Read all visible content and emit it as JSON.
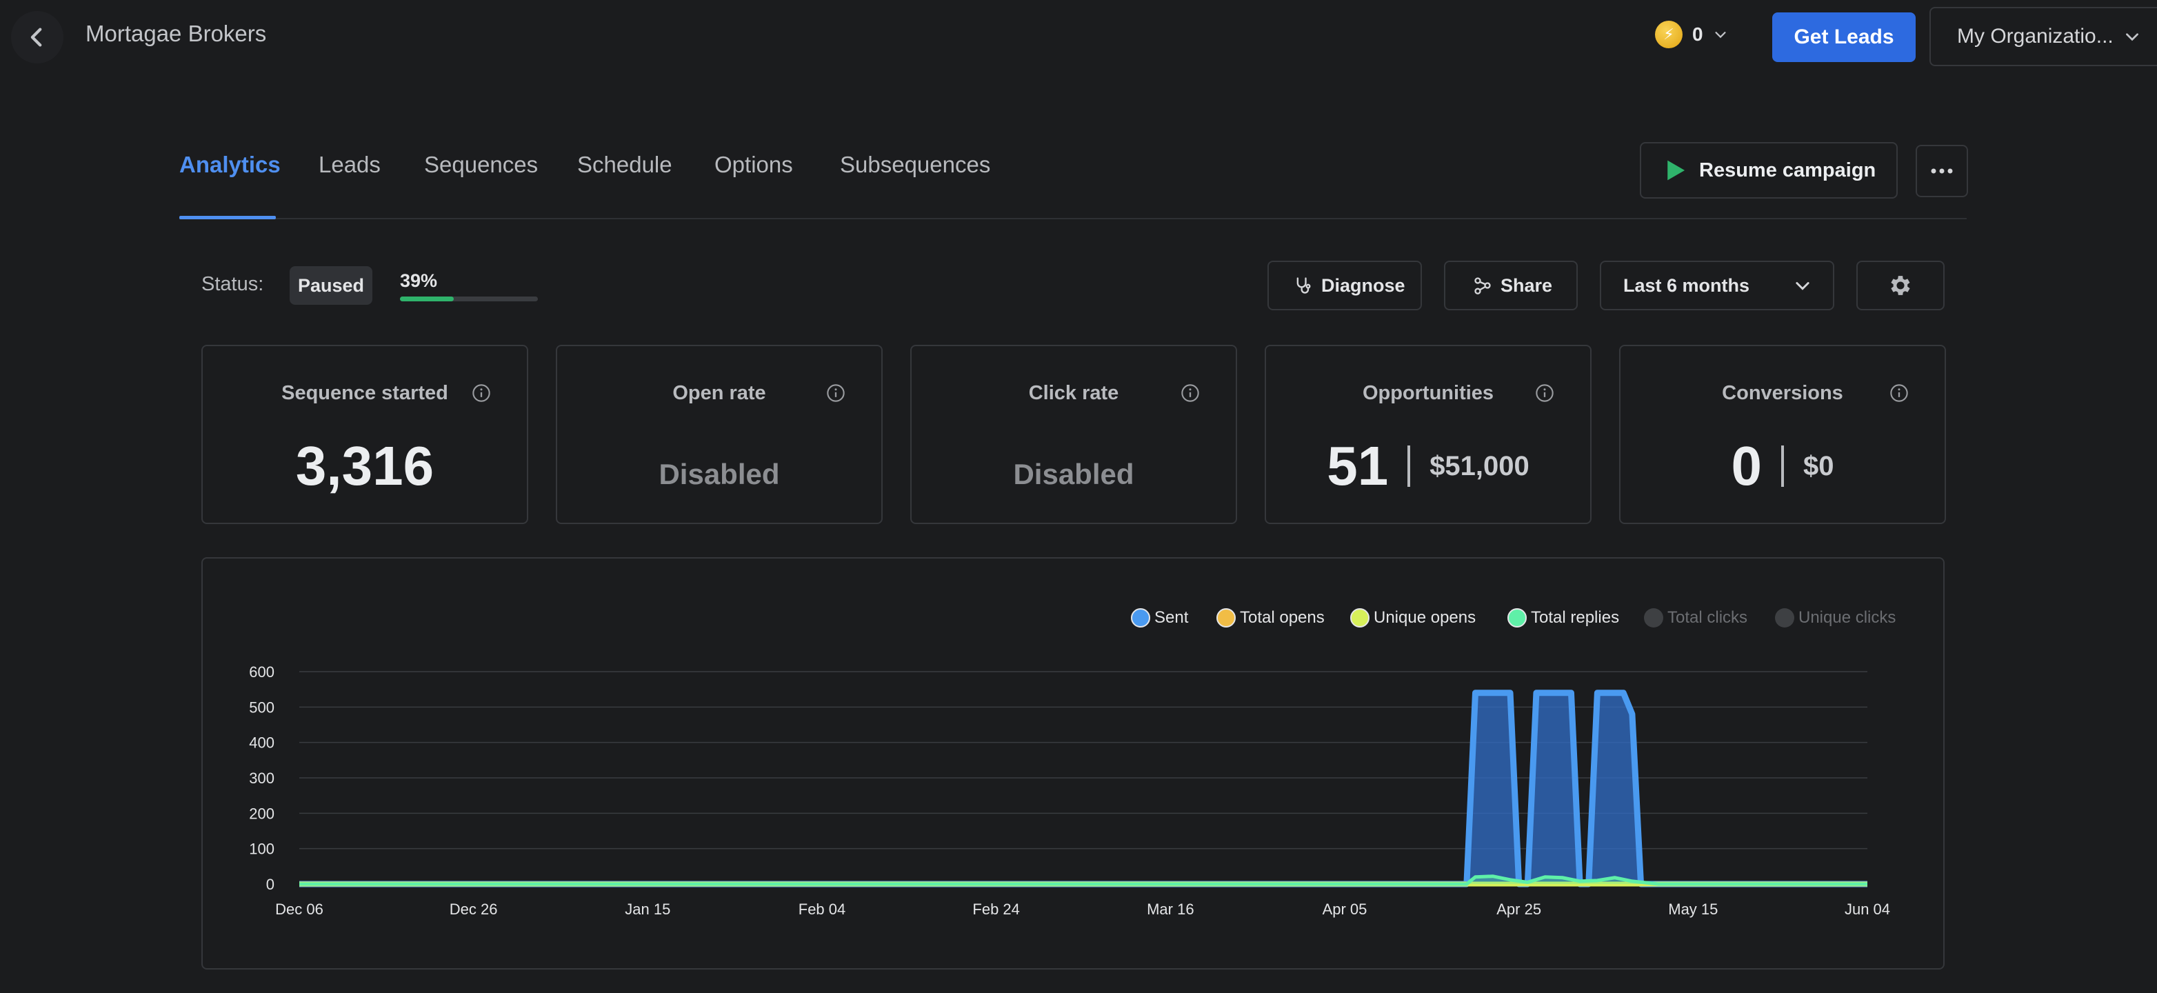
{
  "header": {
    "title": "Mortagae Brokers",
    "credits": "0",
    "get_leads_label": "Get Leads",
    "org_label": "My Organizatio..."
  },
  "tabs": [
    {
      "label": "Analytics",
      "active": true
    },
    {
      "label": "Leads"
    },
    {
      "label": "Sequences"
    },
    {
      "label": "Schedule"
    },
    {
      "label": "Options"
    },
    {
      "label": "Subsequences"
    }
  ],
  "resume_label": "Resume campaign",
  "status": {
    "label": "Status:",
    "badge": "Paused",
    "progress_text": "39%",
    "progress_value": 0.39
  },
  "controls": {
    "diagnose_label": "Diagnose",
    "share_label": "Share",
    "range_label": "Last 6 months"
  },
  "cards": {
    "sequence_started": {
      "title": "Sequence started",
      "value": "3,316"
    },
    "open_rate": {
      "title": "Open rate",
      "value": "Disabled"
    },
    "click_rate": {
      "title": "Click rate",
      "value": "Disabled"
    },
    "opportunities": {
      "title": "Opportunities",
      "count": "51",
      "amount": "$51,000"
    },
    "conversions": {
      "title": "Conversions",
      "count": "0",
      "amount": "$0"
    }
  },
  "colors": {
    "accent": "#2d6ae0",
    "tab_active": "#4f8ff0",
    "progress": "#2fb36b",
    "play": "#2fb36b"
  },
  "chart_data": {
    "type": "area",
    "x_tick_labels": [
      "Dec 06",
      "Dec 26",
      "Jan 15",
      "Feb 04",
      "Feb 24",
      "Mar 16",
      "Apr 05",
      "Apr 25",
      "May 15",
      "Jun 04"
    ],
    "ylim": [
      0,
      600
    ],
    "y_ticks": [
      0,
      100,
      200,
      300,
      400,
      500,
      600
    ],
    "grid": true,
    "legend_position": "top-right",
    "series": [
      {
        "name": "Sent",
        "color": "#4a9af0",
        "enabled": true,
        "points": [
          [
            0,
            0
          ],
          [
            134,
            0
          ],
          [
            135,
            540
          ],
          [
            139,
            540
          ],
          [
            140,
            0
          ],
          [
            141,
            0
          ],
          [
            142,
            540
          ],
          [
            146,
            540
          ],
          [
            147,
            0
          ],
          [
            148,
            0
          ],
          [
            149,
            540
          ],
          [
            152,
            540
          ],
          [
            153,
            480
          ],
          [
            154,
            0
          ],
          [
            180,
            0
          ]
        ]
      },
      {
        "name": "Total opens",
        "color": "#f1bd46",
        "enabled": true,
        "points": [
          [
            0,
            0
          ],
          [
            180,
            0
          ]
        ]
      },
      {
        "name": "Unique opens",
        "color": "#d7f05a",
        "enabled": true,
        "points": [
          [
            0,
            0
          ],
          [
            180,
            0
          ]
        ]
      },
      {
        "name": "Total replies",
        "color": "#5ff0a8",
        "enabled": true,
        "points": [
          [
            0,
            0
          ],
          [
            134,
            0
          ],
          [
            135,
            20
          ],
          [
            137,
            22
          ],
          [
            139,
            12
          ],
          [
            141,
            5
          ],
          [
            143,
            20
          ],
          [
            145,
            18
          ],
          [
            147,
            8
          ],
          [
            149,
            10
          ],
          [
            151,
            18
          ],
          [
            153,
            8
          ],
          [
            156,
            0
          ],
          [
            180,
            0
          ]
        ]
      },
      {
        "name": "Total clicks",
        "color": "#3e4043",
        "enabled": false,
        "points": []
      },
      {
        "name": "Unique clicks",
        "color": "#3e4043",
        "enabled": false,
        "points": []
      }
    ]
  }
}
